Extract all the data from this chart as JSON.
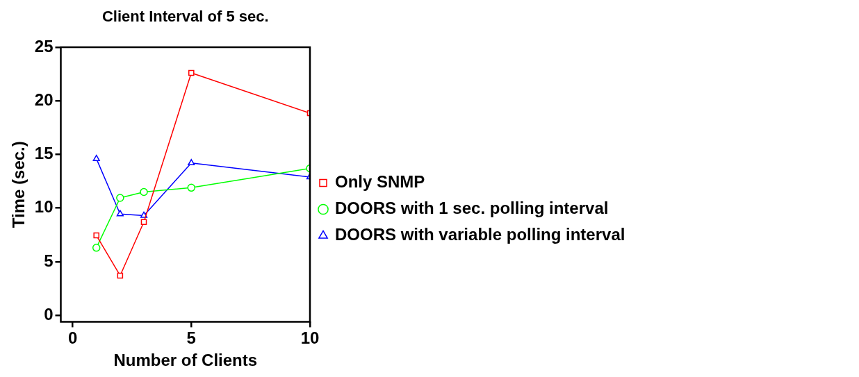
{
  "chart_data": {
    "type": "line",
    "title": "Client Interval of 5 sec.",
    "xlabel": "Number of Clients",
    "ylabel": "Time (sec.)",
    "xlim": [
      -0.5,
      10
    ],
    "xticks": [
      0,
      5,
      10
    ],
    "ylim": [
      -0.6,
      25
    ],
    "yticks": [
      0,
      5,
      10,
      15,
      20,
      25
    ],
    "grid": false,
    "legend": "right",
    "line_style": "solid",
    "x": [
      1,
      2,
      3,
      5,
      10
    ],
    "series": [
      {
        "name": "Only SNMP",
        "color": "#ff0000",
        "marker": "square",
        "values": [
          7.45,
          3.7,
          8.7,
          22.6,
          18.85
        ]
      },
      {
        "name": "DOORS with 1 sec. polling interval",
        "color": "#00ff00",
        "marker": "circle",
        "values": [
          6.3,
          10.95,
          11.5,
          11.9,
          13.7
        ]
      },
      {
        "name": "DOORS with variable polling interval",
        "color": "#0000ff",
        "marker": "triangle",
        "values": [
          14.6,
          9.45,
          9.3,
          14.2,
          12.9
        ]
      }
    ]
  }
}
